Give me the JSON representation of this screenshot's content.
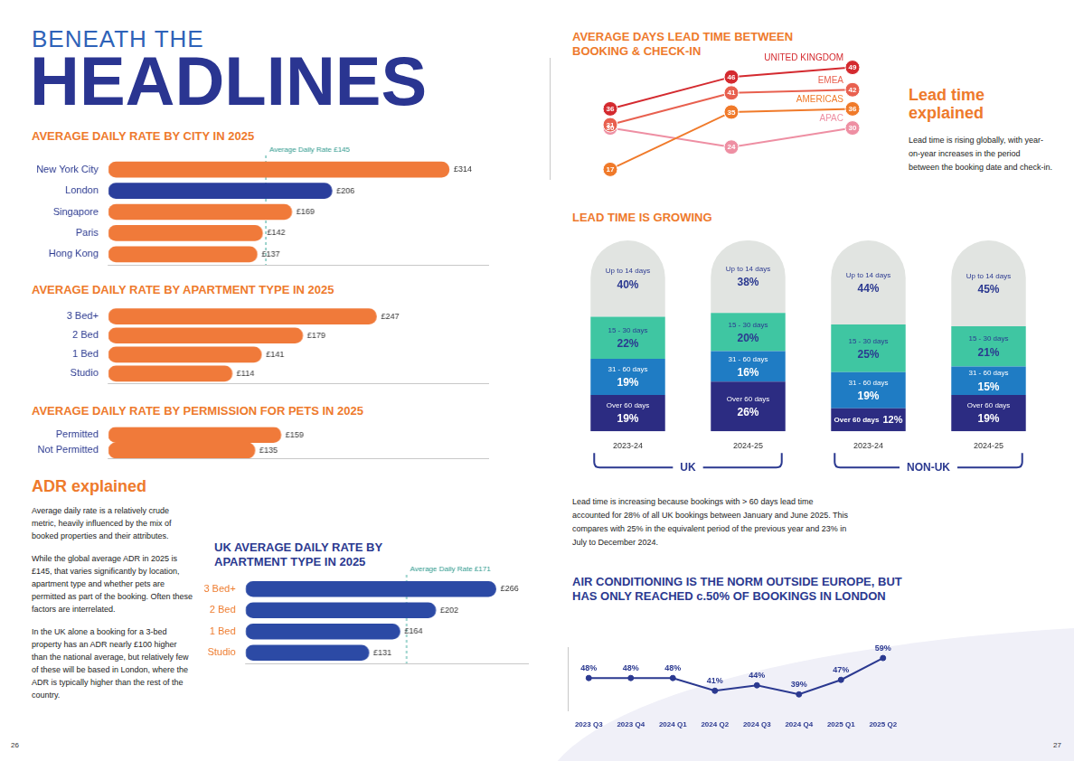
{
  "header": {
    "kicker": "BENEATH THE",
    "title": "HEADLINES"
  },
  "chart_data": [
    {
      "type": "bar",
      "title": "AVERAGE DAILY RATE BY CITY IN 2025",
      "orientation": "horizontal",
      "categories": [
        "New York City",
        "London",
        "Singapore",
        "Paris",
        "Hong Kong"
      ],
      "values": [
        314,
        206,
        169,
        142,
        137
      ],
      "value_labels": [
        "£314",
        "£206",
        "£169",
        "£142",
        "£137"
      ],
      "colors": [
        "#f07a3a",
        "#2a3e9c",
        "#f07a3a",
        "#f07a3a",
        "#f07a3a"
      ],
      "xlim": [
        0,
        350
      ],
      "xticks": [],
      "grid": false,
      "data_labels": true,
      "tick_labels": "y",
      "reference_line": {
        "value": 145,
        "label": "Average Daily Rate £145"
      }
    },
    {
      "type": "bar",
      "title": "AVERAGE DAILY RATE BY APARTMENT TYPE IN 2025",
      "orientation": "horizontal",
      "categories": [
        "3 Bed+",
        "2 Bed",
        "1 Bed",
        "Studio"
      ],
      "values": [
        247,
        179,
        141,
        114
      ],
      "value_labels": [
        "£247",
        "£179",
        "£141",
        "£114"
      ],
      "color": "#f07a3a",
      "xlim": [
        0,
        350
      ],
      "xticks": [],
      "grid": false,
      "data_labels": true,
      "tick_labels": "y"
    },
    {
      "type": "bar",
      "title": "AVERAGE DAILY RATE BY PERMISSION FOR PETS IN 2025",
      "orientation": "horizontal",
      "categories": [
        "Permitted",
        "Not Permitted"
      ],
      "values": [
        159,
        135
      ],
      "value_labels": [
        "£159",
        "£135"
      ],
      "color": "#f07a3a",
      "xlim": [
        0,
        350
      ],
      "xticks": [],
      "grid": false,
      "data_labels": true,
      "tick_labels": "y"
    },
    {
      "type": "bar",
      "title": "UK AVERAGE DAILY RATE BY APARTMENT TYPE IN 2025",
      "orientation": "horizontal",
      "categories": [
        "3 Bed+",
        "2 Bed",
        "1 Bed",
        "Studio"
      ],
      "values": [
        266,
        202,
        164,
        131
      ],
      "value_labels": [
        "£266",
        "£202",
        "£164",
        "£131"
      ],
      "color": "#2c4aa5",
      "xlim": [
        0,
        300
      ],
      "xticks": [],
      "grid": false,
      "data_labels": true,
      "tick_labels": "y",
      "reference_line": {
        "value": 171,
        "label": "Average Daily Rate £171"
      }
    },
    {
      "type": "line",
      "title": "AVERAGE DAYS LEAD TIME BETWEEN BOOKING & CHECK-IN",
      "categories": [
        null,
        null,
        null
      ],
      "series": [
        {
          "name": "UNITED KINGDOM",
          "color": "#d42a2f",
          "values": [
            36,
            46,
            49
          ]
        },
        {
          "name": "EMEA",
          "color": "#e8604f",
          "values": [
            31,
            41,
            42
          ]
        },
        {
          "name": "AMERICAS",
          "color": "#f07a2a",
          "values": [
            17,
            35,
            36
          ]
        },
        {
          "name": "APAC",
          "color": "#ee8fa3",
          "values": [
            30,
            24,
            30
          ]
        }
      ],
      "ylim": [
        14,
        52
      ],
      "yticks": [],
      "grid": false,
      "data_labels": true,
      "tick_labels": false,
      "marker": "circle"
    },
    {
      "type": "bar",
      "title": "LEAD TIME IS GROWING",
      "stacked": true,
      "categories": [
        "2023-24",
        "2024-25",
        "2023-24",
        "2024-25"
      ],
      "groups": [
        {
          "name": "UK",
          "categories": [
            "2023-24",
            "2024-25"
          ]
        },
        {
          "name": "NON-UK",
          "categories": [
            "2023-24",
            "2024-25"
          ]
        }
      ],
      "series": [
        {
          "name": "Over 60 days",
          "color": "#2c2c82",
          "values": [
            19,
            26,
            12,
            19
          ],
          "value_labels": [
            "19%",
            "26%",
            "12%",
            "19%"
          ]
        },
        {
          "name": "31 - 60 days",
          "color": "#1f7cc4",
          "values": [
            19,
            16,
            19,
            15
          ],
          "value_labels": [
            "19%",
            "16%",
            "19%",
            "15%"
          ]
        },
        {
          "name": "15 - 30 days",
          "color": "#3fc6a2",
          "values": [
            22,
            20,
            25,
            21
          ],
          "value_labels": [
            "22%",
            "20%",
            "25%",
            "21%"
          ]
        },
        {
          "name": "Up to 14 days",
          "color": "#e1e4e1",
          "values": [
            40,
            38,
            44,
            45
          ],
          "value_labels": [
            "40%",
            "38%",
            "44%",
            "45%"
          ]
        }
      ],
      "ylim": [
        0,
        100
      ],
      "yticks": [],
      "grid": false,
      "data_labels": true,
      "tick_labels": "x"
    },
    {
      "type": "line",
      "title": "AIR CONDITIONING IS THE NORM OUTSIDE EUROPE, BUT HAS ONLY REACHED c.50% OF BOOKINGS IN LONDON",
      "categories": [
        "2023 Q3",
        "2023 Q4",
        "2024 Q1",
        "2024 Q2",
        "2024 Q3",
        "2024 Q4",
        "2025 Q1",
        "2025 Q2"
      ],
      "values": [
        48,
        48,
        48,
        41,
        44,
        39,
        47,
        59
      ],
      "value_labels": [
        "48%",
        "48%",
        "48%",
        "41%",
        "44%",
        "39%",
        "47%",
        "59%"
      ],
      "color": "#2b3990",
      "ylim": [
        30,
        65
      ],
      "yticks": [],
      "grid": false,
      "data_labels": true,
      "tick_labels": "x",
      "marker": "circle"
    }
  ],
  "texts": [
    {
      "heading": "ADR explained",
      "paragraphs": [
        "Average daily rate is a relatively crude metric, heavily influenced by the mix of booked properties and their attributes.",
        "While the global average ADR in 2025 is £145, that varies significantly by location, apartment type and whether pets are permitted as part of the booking. Often these factors are interrelated.",
        "In the UK alone a booking for a 3-bed property has an ADR nearly £100 higher than the national average, but relatively few of these will be based in London, where the ADR is typically higher than the rest of the country."
      ]
    },
    {
      "heading": "Lead time explained",
      "paragraphs": [
        "Lead time is rising globally, with year-on-year increases in the period between the booking date and check-in."
      ]
    },
    {
      "paragraphs": [
        "Lead time is increasing because bookings with > 60 days lead time accounted for 28% of all UK bookings between January and June 2025. This compares with 25% in the equivalent period of the previous year and 23% in July to December 2024."
      ]
    }
  ],
  "page_numbers": [
    26,
    27
  ]
}
